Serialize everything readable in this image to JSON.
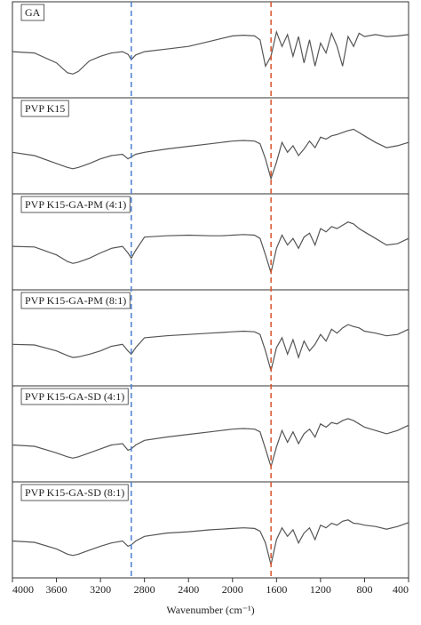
{
  "chart_data": {
    "type": "line",
    "xlabel": "Wavenumber (cm⁻¹)",
    "xlim": [
      4000,
      400
    ],
    "xticks": [
      4000,
      3600,
      3200,
      2800,
      2400,
      2000,
      1600,
      1200,
      800,
      400
    ],
    "ylim": [
      0,
      100
    ],
    "reference_lines": [
      {
        "x": 2920,
        "color": "#4a7fd1"
      },
      {
        "x": 1650,
        "color": "#d9532c"
      }
    ],
    "x": [
      4000,
      3800,
      3600,
      3500,
      3450,
      3400,
      3300,
      3200,
      3100,
      3000,
      2950,
      2920,
      2880,
      2800,
      2600,
      2400,
      2200,
      2100,
      2000,
      1900,
      1800,
      1750,
      1700,
      1650,
      1600,
      1550,
      1500,
      1450,
      1400,
      1350,
      1300,
      1250,
      1200,
      1150,
      1100,
      1050,
      1000,
      950,
      900,
      850,
      800,
      700,
      600,
      500,
      400
    ],
    "series": [
      {
        "name": "GA",
        "color": "#555555",
        "values": [
          62,
          60,
          45,
          30,
          28,
          32,
          48,
          55,
          60,
          62,
          58,
          50,
          57,
          62,
          66,
          70,
          78,
          82,
          86,
          87,
          86,
          80,
          40,
          55,
          92,
          70,
          88,
          55,
          85,
          45,
          80,
          40,
          75,
          60,
          90,
          70,
          40,
          85,
          70,
          90,
          85,
          88,
          85,
          86,
          88
        ]
      },
      {
        "name": "PVP K15",
        "color": "#555555",
        "values": [
          55,
          50,
          38,
          32,
          30,
          32,
          38,
          45,
          50,
          52,
          45,
          48,
          52,
          55,
          60,
          64,
          68,
          70,
          72,
          73,
          72,
          68,
          45,
          15,
          40,
          70,
          55,
          65,
          50,
          60,
          72,
          62,
          78,
          75,
          80,
          82,
          85,
          88,
          90,
          85,
          80,
          70,
          62,
          65,
          70
        ]
      },
      {
        "name": "PVP K15-GA-PM (4:1)",
        "color": "#555555",
        "values": [
          58,
          57,
          45,
          35,
          32,
          34,
          40,
          48,
          55,
          58,
          48,
          40,
          52,
          72,
          74,
          75,
          74,
          74,
          75,
          76,
          75,
          70,
          45,
          18,
          55,
          75,
          60,
          70,
          55,
          72,
          78,
          60,
          85,
          80,
          88,
          85,
          90,
          95,
          92,
          85,
          80,
          70,
          60,
          62,
          70
        ]
      },
      {
        "name": "PVP K15-GA-PM (8:1)",
        "color": "#555555",
        "values": [
          55,
          54,
          45,
          38,
          35,
          36,
          40,
          45,
          52,
          55,
          45,
          40,
          50,
          65,
          68,
          70,
          72,
          73,
          74,
          75,
          74,
          70,
          45,
          15,
          50,
          65,
          40,
          62,
          35,
          60,
          45,
          55,
          70,
          60,
          78,
          72,
          80,
          85,
          82,
          80,
          75,
          72,
          68,
          70,
          78
        ]
      },
      {
        "name": "PVP K15-GA-SD (4:1)",
        "color": "#555555",
        "values": [
          48,
          46,
          36,
          30,
          28,
          30,
          36,
          42,
          48,
          50,
          40,
          42,
          48,
          55,
          60,
          64,
          68,
          70,
          72,
          73,
          72,
          68,
          42,
          15,
          45,
          70,
          52,
          68,
          50,
          65,
          72,
          60,
          80,
          75,
          82,
          80,
          85,
          88,
          85,
          80,
          75,
          70,
          65,
          70,
          78
        ]
      },
      {
        "name": "PVP K15-GA-SD (8:1)",
        "color": "#555555",
        "values": [
          48,
          46,
          36,
          28,
          26,
          28,
          34,
          40,
          45,
          48,
          40,
          42,
          48,
          55,
          60,
          62,
          65,
          66,
          67,
          68,
          67,
          63,
          45,
          12,
          50,
          68,
          55,
          65,
          45,
          60,
          68,
          50,
          72,
          68,
          75,
          72,
          78,
          80,
          75,
          74,
          72,
          70,
          66,
          70,
          76
        ]
      }
    ]
  }
}
